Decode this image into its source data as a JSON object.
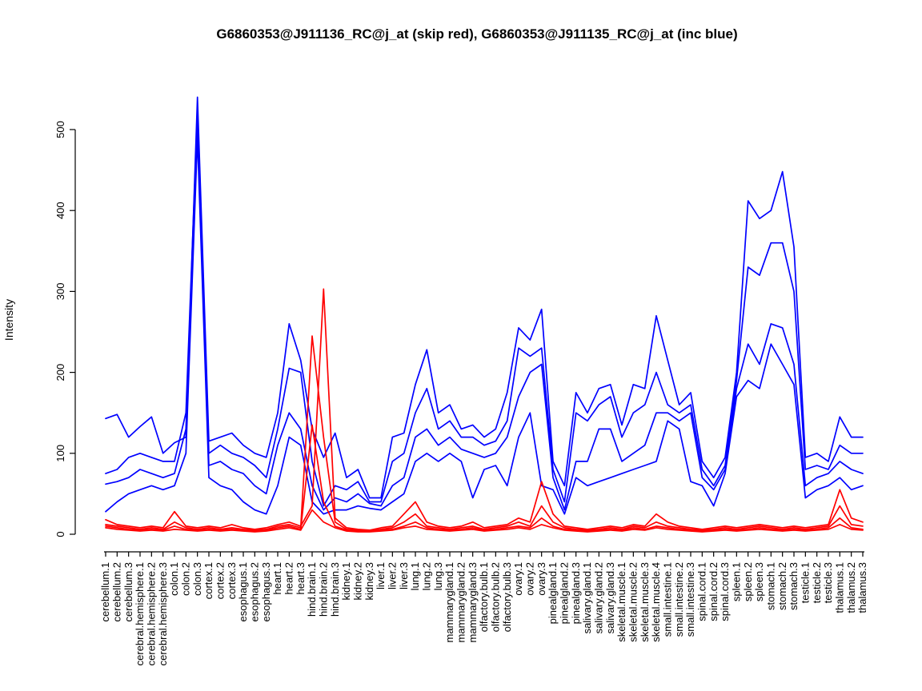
{
  "figure": {
    "title": "G6860353@J911136_RC@j_at (skip red), G6860353@J911135_RC@j_at (inc blue)",
    "ylabel": "Intensity"
  },
  "colors": {
    "inc_blue": "#0000ff",
    "skip_red": "#ff0000",
    "axis": "#000000",
    "background": "#ffffff"
  },
  "chart_data": {
    "type": "line",
    "title": "G6860353@J911136_RC@j_at (skip red), G6860353@J911135_RC@j_at (inc blue)",
    "xlabel": "",
    "ylabel": "Intensity",
    "ylim": [
      0,
      560
    ],
    "yticks": [
      0,
      100,
      200,
      300,
      400,
      500
    ],
    "grid": false,
    "legend": "none (series colors described in title: skip=red, inc=blue)",
    "categories": [
      "cerebellum.1",
      "cerebellum.2",
      "cerebellum.3",
      "cerebral.hemisphere.1",
      "cerebral.hemisphere.2",
      "cerebral.hemisphere.3",
      "colon.1",
      "colon.2",
      "colon.3",
      "cortex.1",
      "cortex.2",
      "cortex.3",
      "esophagus.1",
      "esophagus.2",
      "esophagus.3",
      "heart.1",
      "heart.2",
      "heart.3",
      "hind.brain.1",
      "hind.brain.2",
      "hind.brain.3",
      "kidney.1",
      "kidney.2",
      "kidney.3",
      "liver.1",
      "liver.2",
      "liver.3",
      "lung.1",
      "lung.2",
      "lung.3",
      "mammarygland.1",
      "mammarygland.2",
      "mammarygland.3",
      "olfactory.bulb.1",
      "olfactory.bulb.2",
      "olfactory.bulb.3",
      "ovary.1",
      "ovary.2",
      "ovary.3",
      "pinealgland.1",
      "pinealgland.2",
      "pinealgland.3",
      "salivary.gland.1",
      "salivary.gland.2",
      "salivary.gland.3",
      "skeletal.muscle.1",
      "skeletal.muscle.2",
      "skeletal.muscle.3",
      "skeletal.muscle.4",
      "small.intestine.1",
      "small.intestine.2",
      "small.intestine.3",
      "spinal.cord.1",
      "spinal.cord.2",
      "spinal.cord.3",
      "spleen.1",
      "spleen.2",
      "spleen.3",
      "stomach.1",
      "stomach.2",
      "stomach.3",
      "testicle.1",
      "testicle.2",
      "testicle.3",
      "thalamus.1",
      "thalamus.2",
      "thalamus.3"
    ],
    "series": [
      {
        "name": "G6860353@J911135_RC@j_at (inc) line 1",
        "color": "#0000ff",
        "values": [
          143,
          148,
          120,
          133,
          145,
          100,
          113,
          120,
          540,
          115,
          120,
          125,
          110,
          100,
          95,
          150,
          260,
          215,
          130,
          95,
          125,
          70,
          80,
          45,
          45,
          120,
          125,
          185,
          228,
          150,
          160,
          130,
          135,
          120,
          130,
          175,
          255,
          240,
          278,
          90,
          60,
          175,
          150,
          180,
          185,
          135,
          185,
          180,
          270,
          215,
          160,
          175,
          90,
          70,
          95,
          200,
          412,
          390,
          400,
          448,
          355,
          95,
          100,
          90,
          145,
          120,
          120
        ]
      },
      {
        "name": "G6860353@J911135_RC@j_at (inc) line 2",
        "color": "#0000ff",
        "values": [
          75,
          80,
          95,
          100,
          95,
          90,
          90,
          150,
          520,
          100,
          110,
          100,
          95,
          85,
          70,
          130,
          205,
          200,
          90,
          35,
          60,
          55,
          65,
          40,
          40,
          90,
          100,
          150,
          180,
          130,
          140,
          120,
          120,
          110,
          115,
          140,
          230,
          220,
          230,
          80,
          40,
          150,
          140,
          160,
          170,
          120,
          150,
          160,
          200,
          160,
          150,
          160,
          80,
          60,
          85,
          190,
          330,
          320,
          360,
          360,
          300,
          80,
          85,
          80,
          110,
          100,
          100
        ]
      },
      {
        "name": "G6860353@J911135_RC@j_at (inc) line 3",
        "color": "#0000ff",
        "values": [
          62,
          65,
          70,
          80,
          75,
          70,
          75,
          130,
          505,
          85,
          90,
          80,
          75,
          60,
          50,
          110,
          150,
          130,
          60,
          30,
          45,
          40,
          50,
          38,
          35,
          60,
          70,
          120,
          130,
          110,
          120,
          105,
          100,
          95,
          100,
          120,
          170,
          200,
          210,
          70,
          30,
          90,
          90,
          130,
          130,
          90,
          100,
          110,
          150,
          150,
          140,
          150,
          70,
          55,
          80,
          180,
          235,
          210,
          260,
          255,
          210,
          60,
          70,
          75,
          90,
          80,
          75
        ]
      },
      {
        "name": "G6860353@J911135_RC@j_at (inc) line 4",
        "color": "#0000ff",
        "values": [
          28,
          40,
          50,
          55,
          60,
          55,
          60,
          100,
          490,
          70,
          60,
          55,
          40,
          30,
          25,
          60,
          120,
          110,
          40,
          25,
          30,
          30,
          35,
          32,
          30,
          40,
          50,
          90,
          100,
          90,
          100,
          90,
          45,
          80,
          85,
          60,
          120,
          150,
          60,
          55,
          25,
          70,
          60,
          65,
          70,
          75,
          80,
          85,
          90,
          140,
          130,
          65,
          60,
          35,
          75,
          170,
          190,
          180,
          235,
          210,
          185,
          45,
          55,
          60,
          70,
          55,
          60
        ]
      },
      {
        "name": "G6860353@J911136_RC@j_at (skip) line 1",
        "color": "#ff0000",
        "values": [
          18,
          12,
          10,
          8,
          10,
          8,
          28,
          10,
          8,
          10,
          8,
          12,
          8,
          6,
          8,
          12,
          15,
          10,
          35,
          303,
          20,
          8,
          6,
          5,
          8,
          10,
          25,
          40,
          15,
          10,
          8,
          10,
          15,
          8,
          10,
          12,
          20,
          15,
          65,
          25,
          10,
          8,
          6,
          8,
          10,
          8,
          12,
          10,
          25,
          15,
          10,
          8,
          6,
          8,
          10,
          8,
          10,
          12,
          10,
          8,
          10,
          8,
          10,
          12,
          55,
          20,
          15
        ]
      },
      {
        "name": "G6860353@J911136_RC@j_at (skip) line 2",
        "color": "#ff0000",
        "values": [
          12,
          10,
          8,
          6,
          8,
          6,
          15,
          8,
          6,
          8,
          6,
          8,
          6,
          5,
          6,
          10,
          12,
          8,
          245,
          120,
          15,
          6,
          5,
          4,
          6,
          8,
          15,
          25,
          10,
          8,
          6,
          8,
          10,
          6,
          8,
          10,
          15,
          10,
          35,
          15,
          8,
          6,
          5,
          6,
          8,
          6,
          10,
          8,
          15,
          10,
          8,
          6,
          5,
          6,
          8,
          6,
          8,
          10,
          8,
          6,
          8,
          6,
          8,
          10,
          35,
          12,
          10
        ]
      },
      {
        "name": "G6860353@J911136_RC@j_at (skip) line 3",
        "color": "#ff0000",
        "values": [
          10,
          8,
          6,
          5,
          6,
          5,
          10,
          6,
          5,
          6,
          5,
          6,
          5,
          4,
          5,
          8,
          10,
          6,
          135,
          40,
          10,
          5,
          4,
          4,
          5,
          6,
          10,
          15,
          8,
          6,
          5,
          6,
          8,
          5,
          6,
          8,
          10,
          8,
          20,
          10,
          6,
          5,
          4,
          5,
          6,
          5,
          8,
          6,
          10,
          8,
          6,
          5,
          4,
          5,
          6,
          5,
          6,
          8,
          6,
          5,
          6,
          5,
          6,
          8,
          20,
          8,
          6
        ]
      },
      {
        "name": "G6860353@J911136_RC@j_at (skip) line 4",
        "color": "#ff0000",
        "values": [
          8,
          6,
          5,
          4,
          5,
          4,
          6,
          5,
          4,
          5,
          4,
          5,
          4,
          3,
          4,
          6,
          8,
          5,
          30,
          15,
          8,
          4,
          3,
          3,
          4,
          5,
          8,
          10,
          6,
          5,
          4,
          5,
          6,
          4,
          5,
          6,
          8,
          6,
          12,
          8,
          5,
          4,
          3,
          4,
          5,
          4,
          6,
          5,
          8,
          6,
          5,
          4,
          3,
          4,
          5,
          4,
          5,
          6,
          5,
          4,
          5,
          4,
          5,
          6,
          12,
          6,
          5
        ]
      }
    ]
  }
}
